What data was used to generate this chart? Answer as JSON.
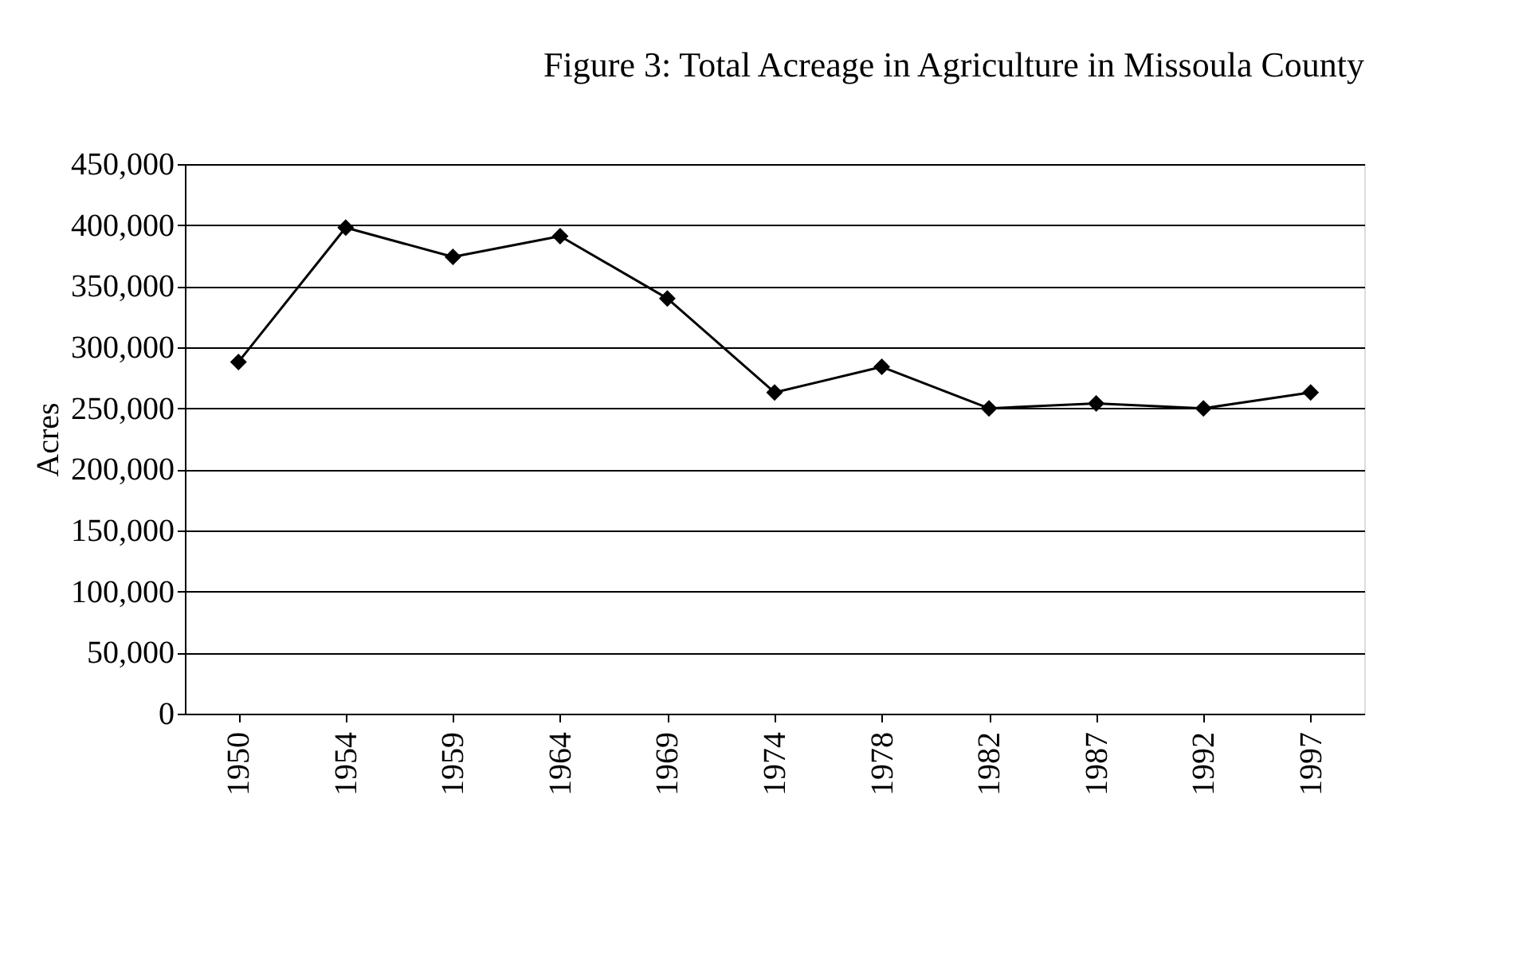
{
  "chart_data": {
    "type": "line",
    "title": "Figure 3:  Total Acreage in Agriculture in Missoula County",
    "ylabel": "Acres",
    "categories": [
      "1950",
      "1954",
      "1959",
      "1964",
      "1969",
      "1974",
      "1978",
      "1982",
      "1987",
      "1992",
      "1997"
    ],
    "series": [
      {
        "color": "#000000",
        "values": [
          288000,
          398000,
          374000,
          391000,
          340000,
          263000,
          284000,
          250000,
          254000,
          250000,
          263000
        ]
      }
    ],
    "ylim": [
      0,
      450000
    ],
    "yticks": [
      0,
      {
        "value": 50000,
        "label": "50,000"
      },
      {
        "value": 100000,
        "label": "100,000"
      },
      {
        "value": 150000,
        "label": "150,000"
      },
      {
        "value": 200000,
        "label": "200,000"
      },
      {
        "value": 250000,
        "label": "250,000"
      },
      {
        "value": 300000,
        "label": "300,000"
      },
      {
        "value": 350000,
        "label": "350,000"
      },
      {
        "value": 400000,
        "label": "400,000"
      },
      {
        "value": 450000,
        "label": "450,000"
      }
    ],
    "grid": "y",
    "marker": "diamond",
    "line_style": "solid"
  }
}
